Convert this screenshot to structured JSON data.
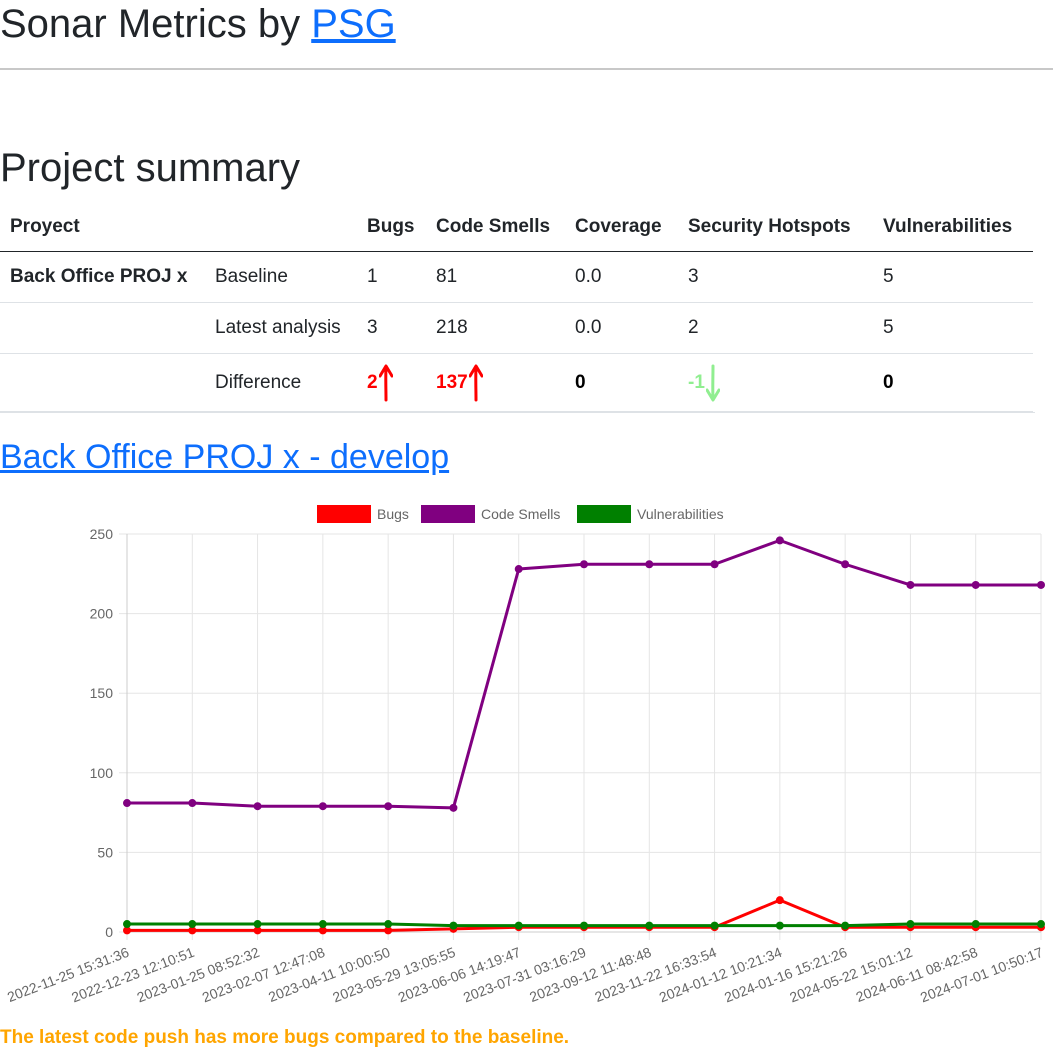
{
  "header": {
    "title_prefix": "Sonar Metrics by ",
    "title_link": "PSG"
  },
  "summary": {
    "title": "Project summary",
    "columns": [
      "Proyect",
      "",
      "Bugs",
      "Code Smells",
      "Coverage",
      "Security Hotspots",
      "Vulnerabilities"
    ],
    "rows": [
      {
        "project": "Back Office PROJ x",
        "label": "Baseline",
        "bugs": "1",
        "code_smells": "81",
        "coverage": "0.0",
        "hotspots": "3",
        "vulnerabilities": "5"
      },
      {
        "project": "",
        "label": "Latest analysis",
        "bugs": "3",
        "code_smells": "218",
        "coverage": "0.0",
        "hotspots": "2",
        "vulnerabilities": "5"
      },
      {
        "project": "",
        "label": "Difference",
        "bugs": "2",
        "code_smells": "137",
        "coverage": "0",
        "hotspots": "-1",
        "vulnerabilities": "0"
      }
    ],
    "difference_trend": {
      "bugs": "up",
      "code_smells": "up",
      "coverage": "none",
      "hotspots": "down",
      "vulnerabilities": "none"
    },
    "colors": {
      "increase": "#ff0000",
      "decrease": "#90ee90"
    }
  },
  "branch": {
    "link_text": "Back Office PROJ x - develop"
  },
  "chart_data": {
    "type": "line",
    "categories": [
      "2022-11-25 15:31:36",
      "2022-12-23 12:10:51",
      "2023-01-25 08:52:32",
      "2023-02-07 12:47:08",
      "2023-04-11 10:00:50",
      "2023-05-29 13:05:55",
      "2023-06-06 14:19:47",
      "2023-07-31 03:16:29",
      "2023-09-12 11:48:48",
      "2023-11-22 16:33:54",
      "2024-01-12 10:21:34",
      "2024-01-16 15:21:26",
      "2024-05-22 15:01:12",
      "2024-06-11 08:42:58",
      "2024-07-01 10:50:17"
    ],
    "series": [
      {
        "name": "Bugs",
        "color": "#ff0000",
        "values": [
          1,
          1,
          1,
          1,
          1,
          2,
          3,
          3,
          3,
          3,
          20,
          3,
          3,
          3,
          3
        ]
      },
      {
        "name": "Code Smells",
        "color": "#800080",
        "values": [
          81,
          81,
          79,
          79,
          79,
          78,
          228,
          231,
          231,
          231,
          246,
          231,
          218,
          218,
          218
        ]
      },
      {
        "name": "Vulnerabilities",
        "color": "#008000",
        "values": [
          5,
          5,
          5,
          5,
          5,
          4,
          4,
          4,
          4,
          4,
          4,
          4,
          5,
          5,
          5
        ]
      }
    ],
    "ylim": [
      0,
      250
    ],
    "yticks": [
      0,
      50,
      100,
      150,
      200,
      250
    ],
    "grid": true,
    "legend": "top-center"
  },
  "footer": {
    "warning": "The latest code push has more bugs compared to the baseline."
  }
}
